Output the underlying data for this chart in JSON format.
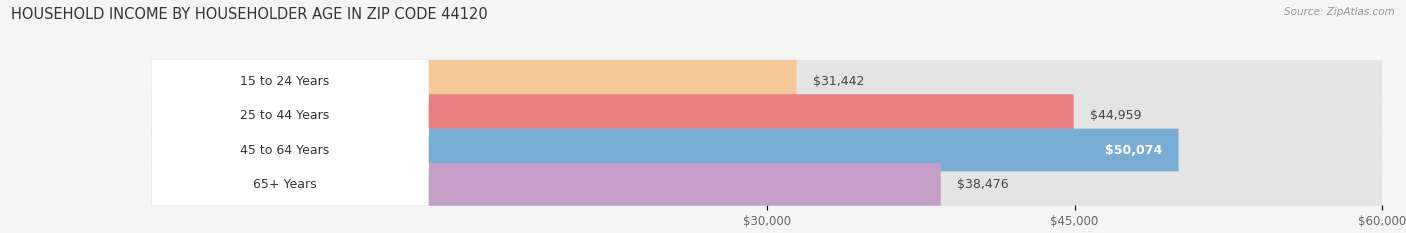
{
  "title": "HOUSEHOLD INCOME BY HOUSEHOLDER AGE IN ZIP CODE 44120",
  "source": "Source: ZipAtlas.com",
  "categories": [
    "15 to 24 Years",
    "25 to 44 Years",
    "45 to 64 Years",
    "65+ Years"
  ],
  "values": [
    31442,
    44959,
    50074,
    38476
  ],
  "value_labels": [
    "$31,442",
    "$44,959",
    "$50,074",
    "$38,476"
  ],
  "bar_colors": [
    "#f5c89a",
    "#e88080",
    "#7aadd4",
    "#c4a0c8"
  ],
  "track_color": "#e4e4e4",
  "xmin": 0,
  "xmax": 60000,
  "xticks": [
    30000,
    45000,
    60000
  ],
  "xtick_labels": [
    "$30,000",
    "$45,000",
    "$60,000"
  ],
  "bg_color": "#f5f5f5",
  "title_fontsize": 10.5,
  "label_fontsize": 9,
  "bar_height": 0.62,
  "label_color_inside": "#ffffff",
  "label_color_outside": "#444444",
  "inside_label_indices": [
    2
  ]
}
